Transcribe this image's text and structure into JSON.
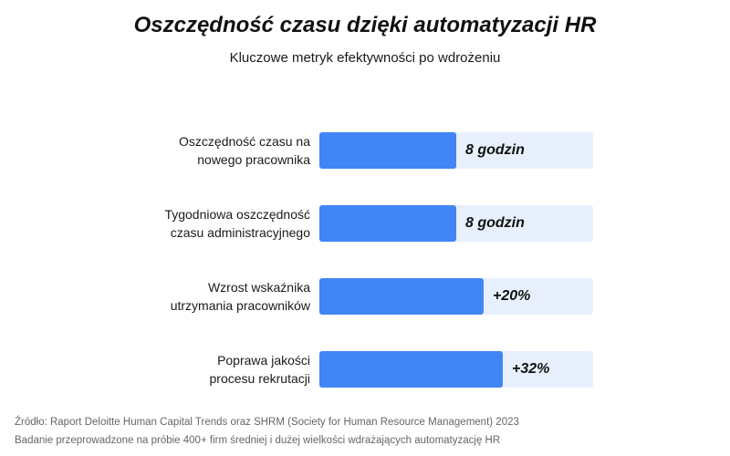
{
  "chart_data": {
    "type": "bar",
    "orientation": "horizontal",
    "title": "Oszczędność czasu dzięki automatyzacji HR",
    "subtitle": "Kluczowe metryk efektywności po wdrożeniu",
    "categories": [
      "Oszczędność czasu na\nnowego pracownika",
      "Tygodniowa oszczędność\nczasu administracyjnego",
      "Wzrost wskaźnika\nutrzymania pracowników",
      "Poprawa jakości\nprocesu rekrutacji"
    ],
    "values": [
      50,
      50,
      60,
      67
    ],
    "value_scale": "percent of track",
    "data_labels": [
      "8 godzin",
      "8 godzin",
      "+20%",
      "+32%"
    ],
    "xlim": [
      0,
      100
    ],
    "grid": false,
    "legend": "none",
    "colors": {
      "bar": "#4285f4",
      "track": "#e8f0fd"
    }
  },
  "footnotes": [
    "Źródło: Raport Deloitte Human Capital Trends oraz SHRM (Society for Human Resource Management) 2023",
    "Badanie przeprowadzone na próbie 400+ firm średniej i dużej wielkości wdrażających automatyzację HR"
  ]
}
